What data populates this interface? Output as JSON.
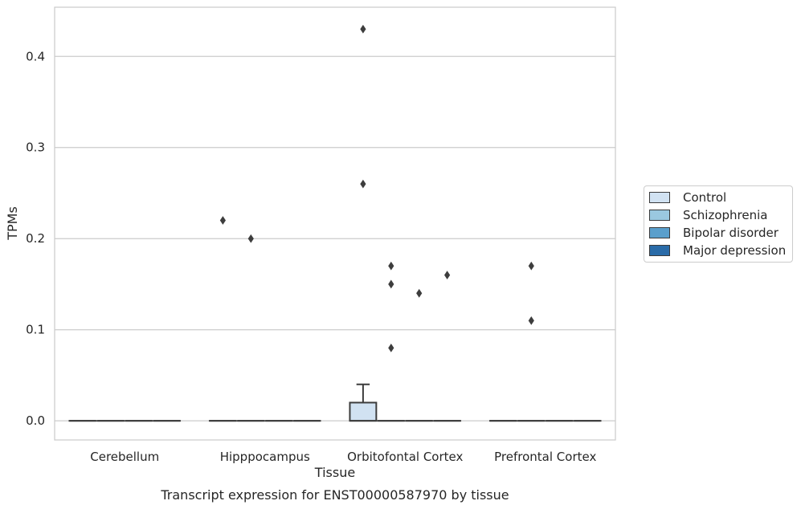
{
  "chart_data": {
    "type": "box",
    "title": "Transcript expression for ENST00000587970 by tissue",
    "xlabel": "Tissue",
    "ylabel": "TPMs",
    "ylim": [
      -0.021,
      0.454
    ],
    "yticks": [
      0.0,
      0.1,
      0.2,
      0.3,
      0.4
    ],
    "ytick_labels": [
      "0.0",
      "0.1",
      "0.2",
      "0.3",
      "0.4"
    ],
    "categories": [
      "Cerebellum",
      "Hipppocampus",
      "Orbitofontal Cortex",
      "Prefrontal Cortex"
    ],
    "grid": "horizontal",
    "legend_position": "right",
    "series": [
      {
        "name": "Control",
        "color": "#d1e2f2",
        "boxes": [
          null,
          null,
          {
            "q1": 0.0,
            "median": 0.0,
            "q3": 0.02,
            "whisker_low": 0.0,
            "whisker_high": 0.04,
            "outliers": [
              0.43,
              0.26
            ]
          },
          null
        ]
      },
      {
        "name": "Schizophrenia",
        "color": "#9ac8e0",
        "boxes": [
          null,
          null,
          {
            "q1": 0.0,
            "median": 0.0,
            "q3": 0.0,
            "whisker_low": 0.0,
            "whisker_high": 0.0,
            "outliers": [
              0.17,
              0.15,
              0.08
            ]
          },
          null
        ]
      },
      {
        "name": "Bipolar disorder",
        "color": "#5a9fcc",
        "boxes": [
          null,
          null,
          {
            "q1": 0.0,
            "median": 0.0,
            "q3": 0.0,
            "whisker_low": 0.0,
            "whisker_high": 0.0,
            "outliers": [
              0.14
            ]
          },
          null
        ]
      },
      {
        "name": "Major depression",
        "color": "#2a6ba8",
        "boxes": [
          null,
          null,
          {
            "q1": 0.0,
            "median": 0.0,
            "q3": 0.0,
            "whisker_low": 0.0,
            "whisker_high": 0.0,
            "outliers": [
              0.16
            ]
          },
          null
        ]
      }
    ],
    "category_outliers": [
      {
        "category": "Cerebellum",
        "values": []
      },
      {
        "category": "Hipppocampus",
        "values": [
          0.22,
          0.2
        ]
      },
      {
        "category": "Orbitofontal Cortex",
        "values": [
          0.43,
          0.26,
          0.17,
          0.15,
          0.14,
          0.16,
          0.08
        ]
      },
      {
        "category": "Prefrontal Cortex",
        "values": [
          0.17,
          0.11
        ]
      }
    ]
  }
}
